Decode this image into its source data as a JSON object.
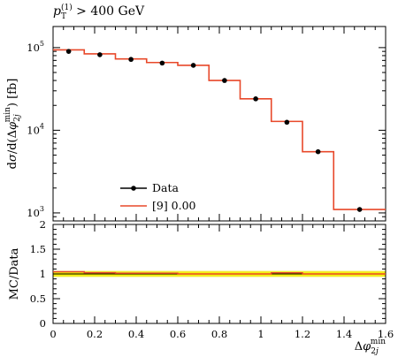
{
  "chart_data": {
    "type": "line",
    "title": {
      "var": "p",
      "sub": "T",
      "sup": "(1)",
      "tail": " > 400 GeV"
    },
    "main": {
      "ylabel": "dσ/d(Δφ2jmin) [fb]",
      "yscale": "log",
      "ylim": [
        800,
        180000
      ],
      "yticks": [
        {
          "value": 1000,
          "label": "10",
          "exp": "3"
        },
        {
          "value": 10000,
          "label": "10",
          "exp": "4"
        },
        {
          "value": 100000,
          "label": "10",
          "exp": "5"
        }
      ]
    },
    "ratio": {
      "ylabel": "MC/Data",
      "ylim": [
        0,
        2
      ],
      "yticks": [
        "0",
        "0.5",
        "1",
        "1.5",
        "2"
      ],
      "band_halfwidth": 0.06
    },
    "x": {
      "label": "Δφ2jmin",
      "lim": [
        0,
        1.6
      ],
      "ticks": [
        "0",
        "0.2",
        "0.4",
        "0.6",
        "0.8",
        "1",
        "1.2",
        "1.4",
        "1.6"
      ]
    },
    "bin_edges": [
      0,
      0.15,
      0.3,
      0.45,
      0.6,
      0.75,
      0.9,
      1.05,
      1.2,
      1.35,
      1.6
    ],
    "series": [
      {
        "name": "Data",
        "kind": "points",
        "color": "#000000",
        "x": [
          0.075,
          0.225,
          0.375,
          0.525,
          0.675,
          0.825,
          0.975,
          1.125,
          1.275,
          1.475
        ],
        "values": [
          90000,
          82000,
          72000,
          65000,
          61000,
          40000,
          24000,
          12500,
          5500,
          1100
        ]
      },
      {
        "name": "[9] 0.00",
        "kind": "histogram",
        "color": "#e8482a",
        "values": [
          94000,
          84000,
          73000,
          66000,
          61000,
          40000,
          24000,
          12800,
          5500,
          1100
        ]
      }
    ],
    "legend": {
      "placement": "lower-left"
    }
  }
}
